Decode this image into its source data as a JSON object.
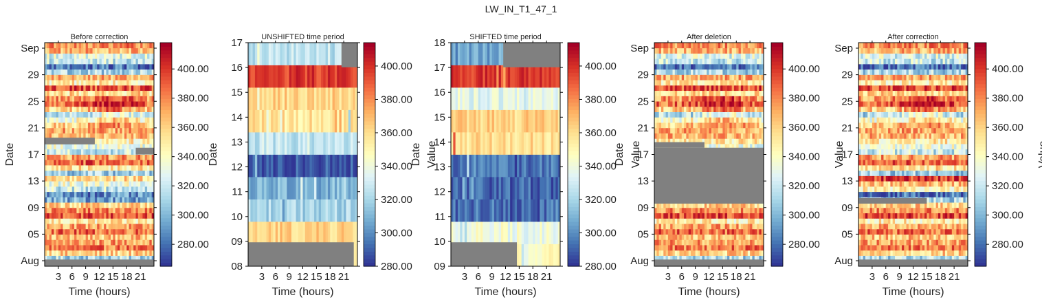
{
  "figure_title": "LW_IN_T1_47_1",
  "colormap": {
    "name": "RdYlBu_r",
    "stops": [
      "#313695",
      "#4575b4",
      "#74add1",
      "#abd9e9",
      "#e0f3f8",
      "#ffffbf",
      "#fee090",
      "#fdae61",
      "#f46d43",
      "#d73027",
      "#a50026"
    ],
    "missing_color": "#808080"
  },
  "chart_data": [
    {
      "type": "heatmap",
      "title": "Before correction",
      "xlabel": "Time (hours)",
      "ylabel": "Date",
      "x_ticks": [
        "3",
        "6",
        "9",
        "12",
        "15",
        "18",
        "21"
      ],
      "y_ticks": [
        "Aug",
        "05",
        "09",
        "13",
        "17",
        "21",
        "25",
        "29",
        "Sep"
      ],
      "colorbar_label": "",
      "colorbar_ticks": [
        "280.00",
        "300.00",
        "320.00",
        "340.00",
        "360.00",
        "380.00",
        "400.00"
      ],
      "value_range": [
        265,
        418
      ],
      "pattern": "full_month",
      "missing_blocks": [
        {
          "row_from": 0.0,
          "row_to": 0.03,
          "hour_from": 0,
          "hour_to": 24
        },
        {
          "row_from": 0.545,
          "row_to": 0.575,
          "hour_from": 0,
          "hour_to": 11
        },
        {
          "row_from": 0.5,
          "row_to": 0.53,
          "hour_from": 20,
          "hour_to": 24
        }
      ]
    },
    {
      "type": "heatmap",
      "title": "UNSHIFTED time period",
      "xlabel": "Time (hours)",
      "ylabel": "Date",
      "x_ticks": [
        "3",
        "6",
        "9",
        "12",
        "15",
        "18",
        "21"
      ],
      "y_ticks": [
        "08",
        "09",
        "10",
        "11",
        "12",
        "13",
        "14",
        "15",
        "16",
        "17"
      ],
      "colorbar_label": "Value",
      "colorbar_ticks": [
        "280.00",
        "300.00",
        "320.00",
        "340.00",
        "360.00",
        "380.00",
        "400.00"
      ],
      "value_range": [
        280,
        414
      ],
      "pattern": "unshifted",
      "missing_blocks": [
        {
          "row_from": 0.0,
          "row_to": 0.107,
          "hour_from": 0,
          "hour_to": 23.2
        },
        {
          "row_from": 0.89,
          "row_to": 1.0,
          "hour_from": 20.5,
          "hour_to": 24
        }
      ]
    },
    {
      "type": "heatmap",
      "title": "SHIFTED time period",
      "xlabel": "Time (hours)",
      "ylabel": "Date",
      "x_ticks": [
        "3",
        "6",
        "9",
        "12",
        "15",
        "18",
        "21"
      ],
      "y_ticks": [
        "09",
        "10",
        "11",
        "12",
        "13",
        "14",
        "15",
        "16",
        "17",
        "18"
      ],
      "colorbar_label": "Value",
      "colorbar_ticks": [
        "280.00",
        "300.00",
        "320.00",
        "340.00",
        "360.00",
        "380.00",
        "400.00"
      ],
      "value_range": [
        280,
        414
      ],
      "pattern": "shifted",
      "missing_blocks": [
        {
          "row_from": 0.0,
          "row_to": 0.107,
          "hour_from": 0,
          "hour_to": 14.5
        },
        {
          "row_from": 0.89,
          "row_to": 1.0,
          "hour_from": 11.5,
          "hour_to": 24
        }
      ]
    },
    {
      "type": "heatmap",
      "title": "After deletion",
      "xlabel": "Time (hours)",
      "ylabel": "Date",
      "x_ticks": [
        "3",
        "6",
        "9",
        "12",
        "15",
        "18",
        "21"
      ],
      "y_ticks": [
        "Aug",
        "05",
        "09",
        "13",
        "17",
        "21",
        "25",
        "29",
        "Sep"
      ],
      "colorbar_label": "Value",
      "colorbar_ticks": [
        "280.00",
        "300.00",
        "320.00",
        "340.00",
        "360.00",
        "380.00",
        "400.00"
      ],
      "value_range": [
        265,
        418
      ],
      "pattern": "full_month",
      "missing_blocks": [
        {
          "row_from": 0.0,
          "row_to": 0.03,
          "hour_from": 0,
          "hour_to": 24
        },
        {
          "row_from": 0.28,
          "row_to": 0.53,
          "hour_from": 0,
          "hour_to": 24
        },
        {
          "row_from": 0.53,
          "row_to": 0.555,
          "hour_from": 0,
          "hour_to": 11
        }
      ]
    },
    {
      "type": "heatmap",
      "title": "After correction",
      "xlabel": "Time (hours)",
      "ylabel": "",
      "x_ticks": [
        "3",
        "6",
        "9",
        "12",
        "15",
        "18",
        "21"
      ],
      "y_ticks": [
        "Aug",
        "05",
        "09",
        "13",
        "17",
        "21",
        "25",
        "29",
        "Sep"
      ],
      "colorbar_label": "Value",
      "colorbar_ticks": [
        "280.00",
        "300.00",
        "320.00",
        "340.00",
        "360.00",
        "380.00",
        "400.00"
      ],
      "value_range": [
        265,
        418
      ],
      "pattern": "corrected",
      "missing_blocks": [
        {
          "row_from": 0.0,
          "row_to": 0.03,
          "hour_from": 0,
          "hour_to": 24
        },
        {
          "row_from": 0.28,
          "row_to": 0.305,
          "hour_from": 0,
          "hour_to": 15
        }
      ]
    }
  ]
}
